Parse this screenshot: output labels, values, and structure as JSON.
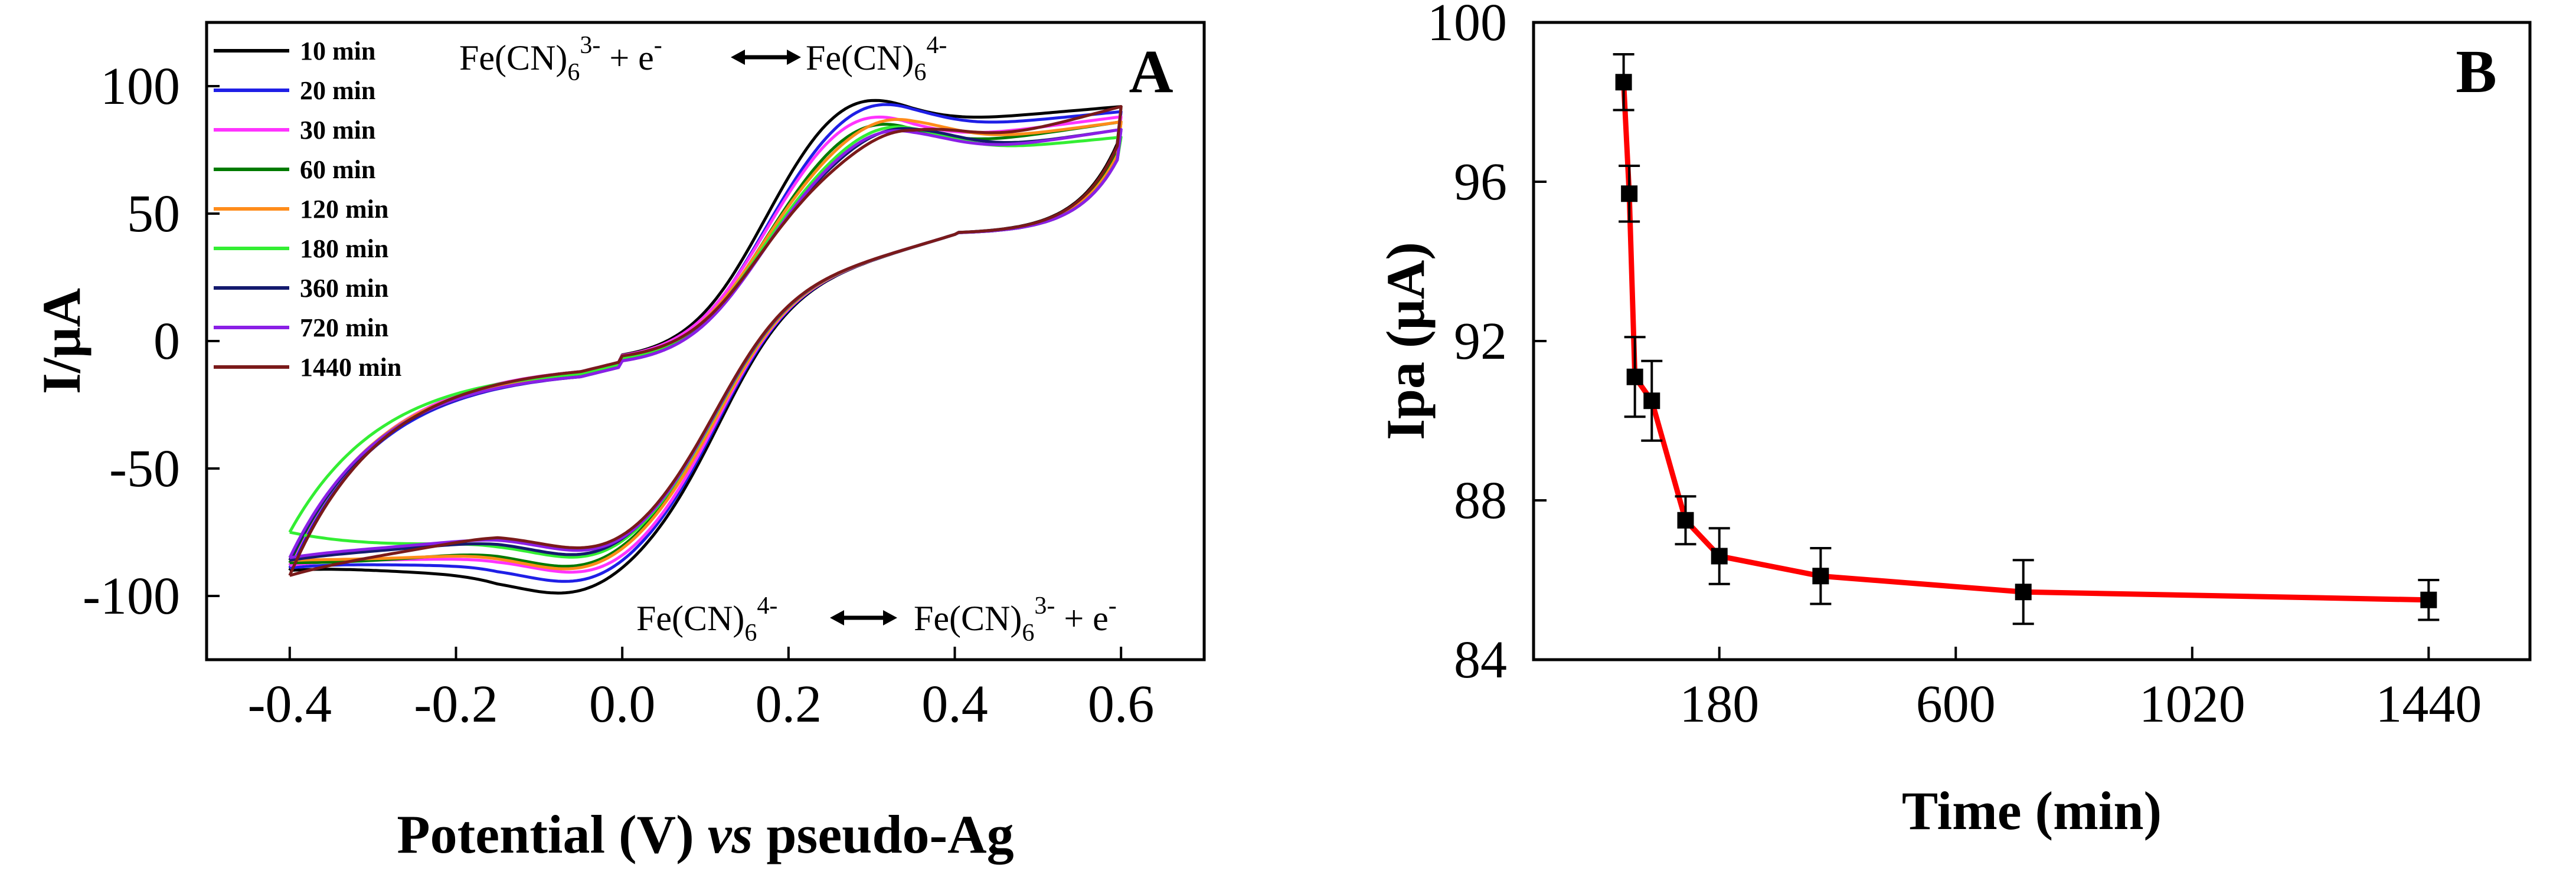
{
  "chart_data": [
    {
      "panel": "A",
      "type": "line",
      "title": "",
      "xlabel_parts": [
        "Potential (V) ",
        "vs",
        " pseudo-Ag"
      ],
      "ylabel": "I/μA",
      "xlim": [
        -0.5,
        0.7
      ],
      "ylim": [
        -125,
        125
      ],
      "xticks": [
        -0.4,
        -0.2,
        0.0,
        0.2,
        0.4,
        0.6
      ],
      "xtick_labels": [
        "-0.4",
        "-0.2",
        "0.0",
        "0.2",
        "0.4",
        "0.6"
      ],
      "yticks": [
        -100,
        -50,
        0,
        50,
        100
      ],
      "ytick_labels": [
        "-100",
        "-50",
        "0",
        "50",
        "100"
      ],
      "legend_position": "top-left",
      "annotations": {
        "oxidation": {
          "base1": "Fe(CN)",
          "sub1": "6",
          "sup1": "3-",
          "plus": " + e",
          "supe": "-",
          "base2": "Fe(CN)",
          "sub2": "6",
          "sup2": "4-"
        },
        "reduction": {
          "base1": "Fe(CN)",
          "sub1": "6",
          "sup1": "4-",
          "base2": "Fe(CN)",
          "sub2": "6",
          "sup2": "3-",
          "plus": " + e",
          "supe": "-"
        }
      },
      "series": [
        {
          "name": "10 min",
          "color": "#000000",
          "ipa": 99.0,
          "ipc": -105,
          "epa": 0.28,
          "epc": -0.05,
          "fwd_start": -8,
          "fwd_end": 92,
          "rev_end": 81,
          "start": -90,
          "pre_min": -86
        },
        {
          "name": "20 min",
          "color": "#1f1fe6",
          "ipa": 96.0,
          "ipc": -101,
          "epa": 0.3,
          "epc": -0.04,
          "fwd_start": -10,
          "fwd_end": 90,
          "rev_end": 79,
          "start": -89,
          "pre_min": -85
        },
        {
          "name": "30 min",
          "color": "#ff33ff",
          "ipa": 91.5,
          "ipc": -98,
          "epa": 0.29,
          "epc": -0.03,
          "fwd_start": -8,
          "fwd_end": 88,
          "rev_end": 78,
          "start": -88,
          "pre_min": -84
        },
        {
          "name": "60 min",
          "color": "#007a00",
          "ipa": 88.0,
          "ipc": -95,
          "epa": 0.3,
          "epc": -0.04,
          "fwd_start": -9,
          "fwd_end": 86,
          "rev_end": 77,
          "start": -87,
          "pre_min": -87
        },
        {
          "name": "120 min",
          "color": "#ff8c1a",
          "ipa": 89.0,
          "ipc": -96,
          "epa": 0.32,
          "epc": -0.04,
          "fwd_start": -9,
          "fwd_end": 86,
          "rev_end": 76,
          "start": -86,
          "pre_min": -85
        },
        {
          "name": "180 min",
          "color": "#33ee33",
          "ipa": 86.0,
          "ipc": -92,
          "epa": 0.32,
          "epc": -0.03,
          "fwd_start": -9,
          "fwd_end": 80,
          "rev_end": 74,
          "start": -75,
          "pre_min": -78
        },
        {
          "name": "360 min",
          "color": "#141a6e",
          "ipa": 85.0,
          "ipc": -91,
          "epa": 0.33,
          "epc": -0.03,
          "fwd_start": -10,
          "fwd_end": 83,
          "rev_end": 74,
          "start": -86,
          "pre_min": -83
        },
        {
          "name": "720 min",
          "color": "#8a1fe6",
          "ipa": 84.5,
          "ipc": -90,
          "epa": 0.32,
          "epc": -0.02,
          "fwd_start": -10,
          "fwd_end": 83,
          "rev_end": 74,
          "start": -85,
          "pre_min": -82
        },
        {
          "name": "1440 min",
          "color": "#7a1a1a",
          "ipa": 84.0,
          "ipc": -89,
          "epa": 0.34,
          "epc": -0.02,
          "fwd_start": -8,
          "fwd_end": 92,
          "rev_end": 80,
          "start": -92,
          "pre_min": -88
        }
      ]
    },
    {
      "panel": "B",
      "type": "scatter",
      "title": "",
      "xlabel": "Time (min)",
      "ylabel": "Ipa (μA)",
      "xlim": [
        -150,
        1620
      ],
      "ylim": [
        84,
        100
      ],
      "xticks": [
        180,
        600,
        1020,
        1440
      ],
      "xtick_labels": [
        "180",
        "600",
        "1020",
        "1440"
      ],
      "yticks": [
        84,
        88,
        92,
        96,
        100
      ],
      "ytick_labels": [
        "84",
        "88",
        "92",
        "96",
        "100"
      ],
      "line_color": "#ff0000",
      "marker_color": "#000000",
      "x": [
        10,
        20,
        30,
        60,
        120,
        180,
        360,
        720,
        1440
      ],
      "y": [
        98.5,
        95.7,
        91.1,
        90.5,
        87.5,
        86.6,
        86.1,
        85.7,
        85.5
      ],
      "error": [
        0.7,
        0.7,
        1.0,
        1.0,
        0.6,
        0.7,
        0.7,
        0.8,
        0.5
      ]
    }
  ]
}
